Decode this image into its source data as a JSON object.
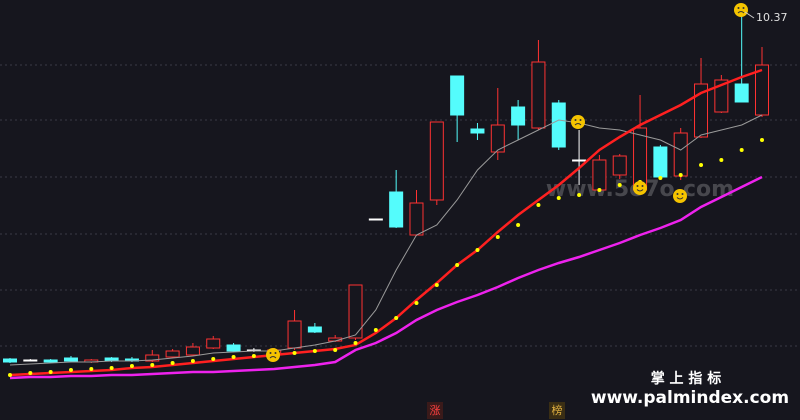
{
  "chart_data": {
    "type": "candlestick",
    "ylim": [
      2.97,
      10.57
    ],
    "up_color": "#ff3232",
    "down_color": "#54fcfc",
    "flat_color": "#ffffff",
    "open": [
      3.39,
      3.37,
      3.37,
      3.41,
      3.33,
      3.41,
      3.39,
      3.35,
      3.43,
      3.47,
      3.61,
      3.67,
      3.57,
      3.49,
      3.61,
      4.03,
      3.75,
      3.81,
      6.19,
      6.73,
      5.87,
      6.57,
      9.05,
      7.99,
      7.53,
      8.43,
      8.01,
      8.51,
      7.37,
      6.77,
      7.07,
      6.77,
      7.63,
      7.05,
      7.83,
      8.33,
      8.89,
      8.27
    ],
    "high": [
      3.41,
      3.39,
      3.39,
      3.45,
      3.39,
      3.43,
      3.43,
      3.57,
      3.59,
      3.71,
      3.85,
      3.71,
      3.61,
      3.61,
      4.37,
      4.11,
      3.87,
      4.87,
      6.19,
      7.17,
      6.77,
      8.13,
      9.05,
      8.11,
      8.81,
      8.57,
      9.77,
      8.57,
      7.97,
      7.47,
      7.49,
      8.67,
      7.67,
      8.01,
      9.41,
      9.07,
      10.37,
      9.63
    ],
    "low": [
      3.31,
      3.35,
      3.31,
      3.33,
      3.31,
      3.33,
      3.33,
      3.33,
      3.41,
      3.45,
      3.59,
      3.53,
      3.53,
      3.47,
      3.57,
      3.91,
      3.73,
      3.77,
      6.19,
      6.01,
      5.85,
      6.47,
      7.73,
      7.77,
      7.37,
      7.77,
      7.97,
      7.57,
      6.87,
      6.77,
      6.99,
      6.75,
      6.99,
      6.97,
      7.81,
      8.31,
      8.53,
      8.23
    ],
    "close": [
      3.33,
      3.37,
      3.33,
      3.35,
      3.37,
      3.35,
      3.35,
      3.47,
      3.55,
      3.63,
      3.79,
      3.55,
      3.57,
      3.57,
      4.15,
      3.93,
      3.81,
      4.87,
      6.19,
      6.03,
      6.51,
      8.13,
      8.27,
      7.91,
      8.07,
      8.07,
      9.33,
      7.63,
      7.37,
      7.37,
      7.45,
      8.01,
      7.03,
      7.91,
      8.89,
      8.97,
      8.53,
      9.27
    ],
    "lines": [
      {
        "color": "#9a9a9a",
        "style": "line",
        "width": 1,
        "values": [
          3.27,
          3.29,
          3.31,
          3.33,
          3.33,
          3.35,
          3.35,
          3.37,
          3.41,
          3.45,
          3.51,
          3.53,
          3.55,
          3.55,
          3.61,
          3.67,
          3.75,
          3.87,
          4.37,
          5.17,
          5.87,
          6.07,
          6.57,
          7.17,
          7.57,
          7.77,
          7.97,
          8.17,
          8.11,
          8.01,
          7.97,
          7.87,
          7.77,
          7.57,
          7.87,
          7.97,
          8.07,
          8.27
        ]
      },
      {
        "color": "#ff2020",
        "style": "line",
        "width": 2.5,
        "values": [
          3.07,
          3.09,
          3.11,
          3.13,
          3.15,
          3.17,
          3.21,
          3.23,
          3.27,
          3.31,
          3.35,
          3.39,
          3.43,
          3.47,
          3.51,
          3.55,
          3.59,
          3.67,
          3.91,
          4.21,
          4.57,
          4.91,
          5.27,
          5.57,
          5.93,
          6.27,
          6.57,
          6.87,
          7.21,
          7.57,
          7.83,
          8.07,
          8.27,
          8.47,
          8.71,
          8.87,
          9.03,
          9.17
        ]
      },
      {
        "color": "#ee22ee",
        "style": "line",
        "width": 2.5,
        "values": [
          3.01,
          3.03,
          3.03,
          3.05,
          3.05,
          3.07,
          3.07,
          3.09,
          3.11,
          3.13,
          3.13,
          3.15,
          3.17,
          3.19,
          3.23,
          3.27,
          3.33,
          3.57,
          3.71,
          3.91,
          4.17,
          4.37,
          4.53,
          4.67,
          4.83,
          5.01,
          5.17,
          5.31,
          5.43,
          5.57,
          5.71,
          5.87,
          6.01,
          6.17,
          6.43,
          6.63,
          6.83,
          7.03
        ]
      },
      {
        "color": "#ffff00",
        "style": "dots",
        "width": 2,
        "values": [
          3.07,
          3.11,
          3.13,
          3.17,
          3.19,
          3.21,
          3.25,
          3.27,
          3.31,
          3.35,
          3.39,
          3.43,
          3.45,
          3.47,
          3.51,
          3.55,
          3.57,
          3.71,
          3.97,
          4.21,
          4.51,
          4.87,
          5.27,
          5.57,
          5.83,
          6.07,
          6.47,
          6.61,
          6.67,
          6.77,
          6.87,
          6.93,
          7.01,
          7.07,
          7.27,
          7.37,
          7.57,
          7.77
        ]
      }
    ],
    "annotations": [
      "10.37"
    ],
    "tags": [
      "涨",
      "榜"
    ],
    "watermarks": [
      "www.5o7o.com",
      "掌 上 指 标",
      "www.palmindex.com"
    ]
  }
}
